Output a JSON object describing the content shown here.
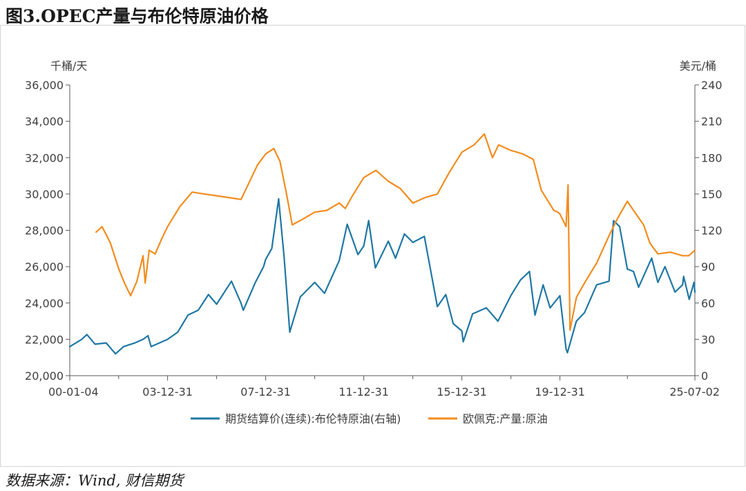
{
  "page": {
    "title": "图3.OPEC产量与布伦特原油价格",
    "source": "数据来源：Wind, 财信期货"
  },
  "colors": {
    "brent": "#1f77a4",
    "opec": "#f28c1e",
    "axis": "#595959",
    "text": "#404040"
  },
  "chart_data": {
    "type": "line",
    "left_axis_unit": "千桶/天",
    "right_axis_unit": "美元/桶",
    "left_ylim": [
      20000,
      36000
    ],
    "left_ticks": [
      20000,
      22000,
      24000,
      26000,
      28000,
      30000,
      32000,
      34000,
      36000
    ],
    "left_tick_labels": [
      "20,000",
      "22,000",
      "24,000",
      "26,000",
      "28,000",
      "30,000",
      "32,000",
      "34,000",
      "36,000"
    ],
    "right_ylim": [
      0,
      240
    ],
    "right_ticks": [
      0,
      30,
      60,
      90,
      120,
      150,
      180,
      210,
      240
    ],
    "right_tick_labels": [
      "0",
      "30",
      "60",
      "90",
      "120",
      "150",
      "180",
      "210",
      "240"
    ],
    "x_ticks": [
      "2000-01-04",
      "2003-12-31",
      "2007-12-31",
      "2011-12-31",
      "2015-12-31",
      "2019-12-31",
      "2025-07-02"
    ],
    "x_tick_labels": [
      "00-01-04",
      "03-12-31",
      "07-12-31",
      "11-12-31",
      "15-12-31",
      "19-12-31",
      "25-07-02"
    ],
    "x_range": [
      "2000-01-04",
      "2025-07-02"
    ],
    "legend_position": "bottom",
    "grid": false,
    "series": [
      {
        "name": "期货结算价(连续):布伦特原油(右轴)",
        "axis": "right",
        "color": "#1f77a4",
        "points": [
          [
            "2000-01-04",
            24
          ],
          [
            "2000-06-30",
            30
          ],
          [
            "2000-09-15",
            34
          ],
          [
            "2001-01-15",
            26
          ],
          [
            "2001-06-29",
            27
          ],
          [
            "2001-11-15",
            18
          ],
          [
            "2002-03-15",
            24
          ],
          [
            "2002-08-30",
            27
          ],
          [
            "2002-12-31",
            30
          ],
          [
            "2003-03-14",
            33
          ],
          [
            "2003-04-30",
            24
          ],
          [
            "2003-12-31",
            30
          ],
          [
            "2004-05-31",
            36
          ],
          [
            "2004-10-29",
            50
          ],
          [
            "2005-03-31",
            54
          ],
          [
            "2005-08-31",
            67
          ],
          [
            "2005-12-30",
            59
          ],
          [
            "2006-08-08",
            78
          ],
          [
            "2006-12-29",
            60
          ],
          [
            "2007-01-31",
            54
          ],
          [
            "2007-07-31",
            77
          ],
          [
            "2007-11-30",
            90
          ],
          [
            "2007-12-31",
            96
          ],
          [
            "2008-03-31",
            105
          ],
          [
            "2008-07-11",
            146
          ],
          [
            "2008-09-30",
            98
          ],
          [
            "2008-12-24",
            36
          ],
          [
            "2009-05-29",
            65
          ],
          [
            "2009-12-31",
            77
          ],
          [
            "2010-05-25",
            68
          ],
          [
            "2010-12-31",
            95
          ],
          [
            "2011-04-29",
            125
          ],
          [
            "2011-10-05",
            100
          ],
          [
            "2011-12-31",
            107
          ],
          [
            "2012-03-13",
            128
          ],
          [
            "2012-06-21",
            89
          ],
          [
            "2012-12-31",
            111
          ],
          [
            "2013-04-17",
            97
          ],
          [
            "2013-08-28",
            117
          ],
          [
            "2013-12-31",
            110
          ],
          [
            "2014-06-20",
            115
          ],
          [
            "2014-12-31",
            57
          ],
          [
            "2015-05-06",
            67
          ],
          [
            "2015-08-24",
            43
          ],
          [
            "2015-12-31",
            37
          ],
          [
            "2016-01-20",
            28
          ],
          [
            "2016-06-08",
            51
          ],
          [
            "2016-12-30",
            56
          ],
          [
            "2017-06-21",
            45
          ],
          [
            "2017-12-29",
            66
          ],
          [
            "2018-05-22",
            79
          ],
          [
            "2018-10-03",
            86
          ],
          [
            "2018-12-24",
            50
          ],
          [
            "2019-04-25",
            75
          ],
          [
            "2019-08-07",
            56
          ],
          [
            "2019-12-31",
            66
          ],
          [
            "2020-03-31",
            22
          ],
          [
            "2020-04-21",
            19
          ],
          [
            "2020-08-31",
            45
          ],
          [
            "2020-12-31",
            52
          ],
          [
            "2021-06-30",
            75
          ],
          [
            "2021-12-31",
            78
          ],
          [
            "2022-03-08",
            128
          ],
          [
            "2022-06-08",
            123
          ],
          [
            "2022-09-30",
            88
          ],
          [
            "2022-12-30",
            86
          ],
          [
            "2023-03-17",
            73
          ],
          [
            "2023-09-27",
            97
          ],
          [
            "2023-12-29",
            77
          ],
          [
            "2024-04-12",
            90
          ],
          [
            "2024-09-10",
            69
          ],
          [
            "2024-12-31",
            75
          ],
          [
            "2025-01-15",
            82
          ],
          [
            "2025-04-09",
            63
          ],
          [
            "2025-06-19",
            77
          ],
          [
            "2025-07-02",
            69
          ]
        ]
      },
      {
        "name": "欧佩克:产量:原油",
        "axis": "left",
        "color": "#f28c1e",
        "points": [
          [
            "2001-01-31",
            27900
          ],
          [
            "2001-04-30",
            28200
          ],
          [
            "2001-08-31",
            27300
          ],
          [
            "2001-12-31",
            25900
          ],
          [
            "2002-03-29",
            25100
          ],
          [
            "2002-06-28",
            24400
          ],
          [
            "2002-09-30",
            25200
          ],
          [
            "2002-12-31",
            26600
          ],
          [
            "2003-01-31",
            25100
          ],
          [
            "2003-03-31",
            26900
          ],
          [
            "2003-06-30",
            26700
          ],
          [
            "2003-09-30",
            27500
          ],
          [
            "2003-12-31",
            28200
          ],
          [
            "2004-06-30",
            29300
          ],
          [
            "2004-12-31",
            30100
          ],
          [
            "2005-06-30",
            30000
          ],
          [
            "2005-12-30",
            29900
          ],
          [
            "2006-06-30",
            29800
          ],
          [
            "2006-12-29",
            29700
          ],
          [
            "2007-03-30",
            30400
          ],
          [
            "2007-08-31",
            31600
          ],
          [
            "2007-12-31",
            32200
          ],
          [
            "2008-04-30",
            32500
          ],
          [
            "2008-07-31",
            31800
          ],
          [
            "2008-10-31",
            30100
          ],
          [
            "2009-01-30",
            28300
          ],
          [
            "2009-06-30",
            28600
          ],
          [
            "2009-12-31",
            29000
          ],
          [
            "2010-06-30",
            29100
          ],
          [
            "2010-12-31",
            29500
          ],
          [
            "2011-03-31",
            29200
          ],
          [
            "2011-06-30",
            29800
          ],
          [
            "2011-12-31",
            30900
          ],
          [
            "2012-06-29",
            31300
          ],
          [
            "2012-12-31",
            30700
          ],
          [
            "2013-06-28",
            30300
          ],
          [
            "2013-12-31",
            29500
          ],
          [
            "2014-06-30",
            29800
          ],
          [
            "2014-12-31",
            30000
          ],
          [
            "2015-06-30",
            31200
          ],
          [
            "2015-12-31",
            32300
          ],
          [
            "2016-06-30",
            32700
          ],
          [
            "2016-11-30",
            33300
          ],
          [
            "2017-03-31",
            32000
          ],
          [
            "2017-06-30",
            32700
          ],
          [
            "2017-12-29",
            32400
          ],
          [
            "2018-06-29",
            32200
          ],
          [
            "2018-11-30",
            31900
          ],
          [
            "2019-03-29",
            30200
          ],
          [
            "2019-09-30",
            29100
          ],
          [
            "2019-11-29",
            29000
          ],
          [
            "2019-12-31",
            28900
          ],
          [
            "2020-03-31",
            28200
          ],
          [
            "2020-04-30",
            30500
          ],
          [
            "2020-05-29",
            22500
          ],
          [
            "2020-08-31",
            24300
          ],
          [
            "2020-12-31",
            25100
          ],
          [
            "2021-06-30",
            26200
          ],
          [
            "2021-12-31",
            27700
          ],
          [
            "2022-04-29",
            28600
          ],
          [
            "2022-09-30",
            29600
          ],
          [
            "2022-12-30",
            29100
          ],
          [
            "2023-05-31",
            28300
          ],
          [
            "2023-08-31",
            27300
          ],
          [
            "2023-12-29",
            26700
          ],
          [
            "2024-06-28",
            26800
          ],
          [
            "2024-12-31",
            26600
          ],
          [
            "2025-03-31",
            26600
          ],
          [
            "2025-07-02",
            26900
          ]
        ]
      }
    ]
  }
}
